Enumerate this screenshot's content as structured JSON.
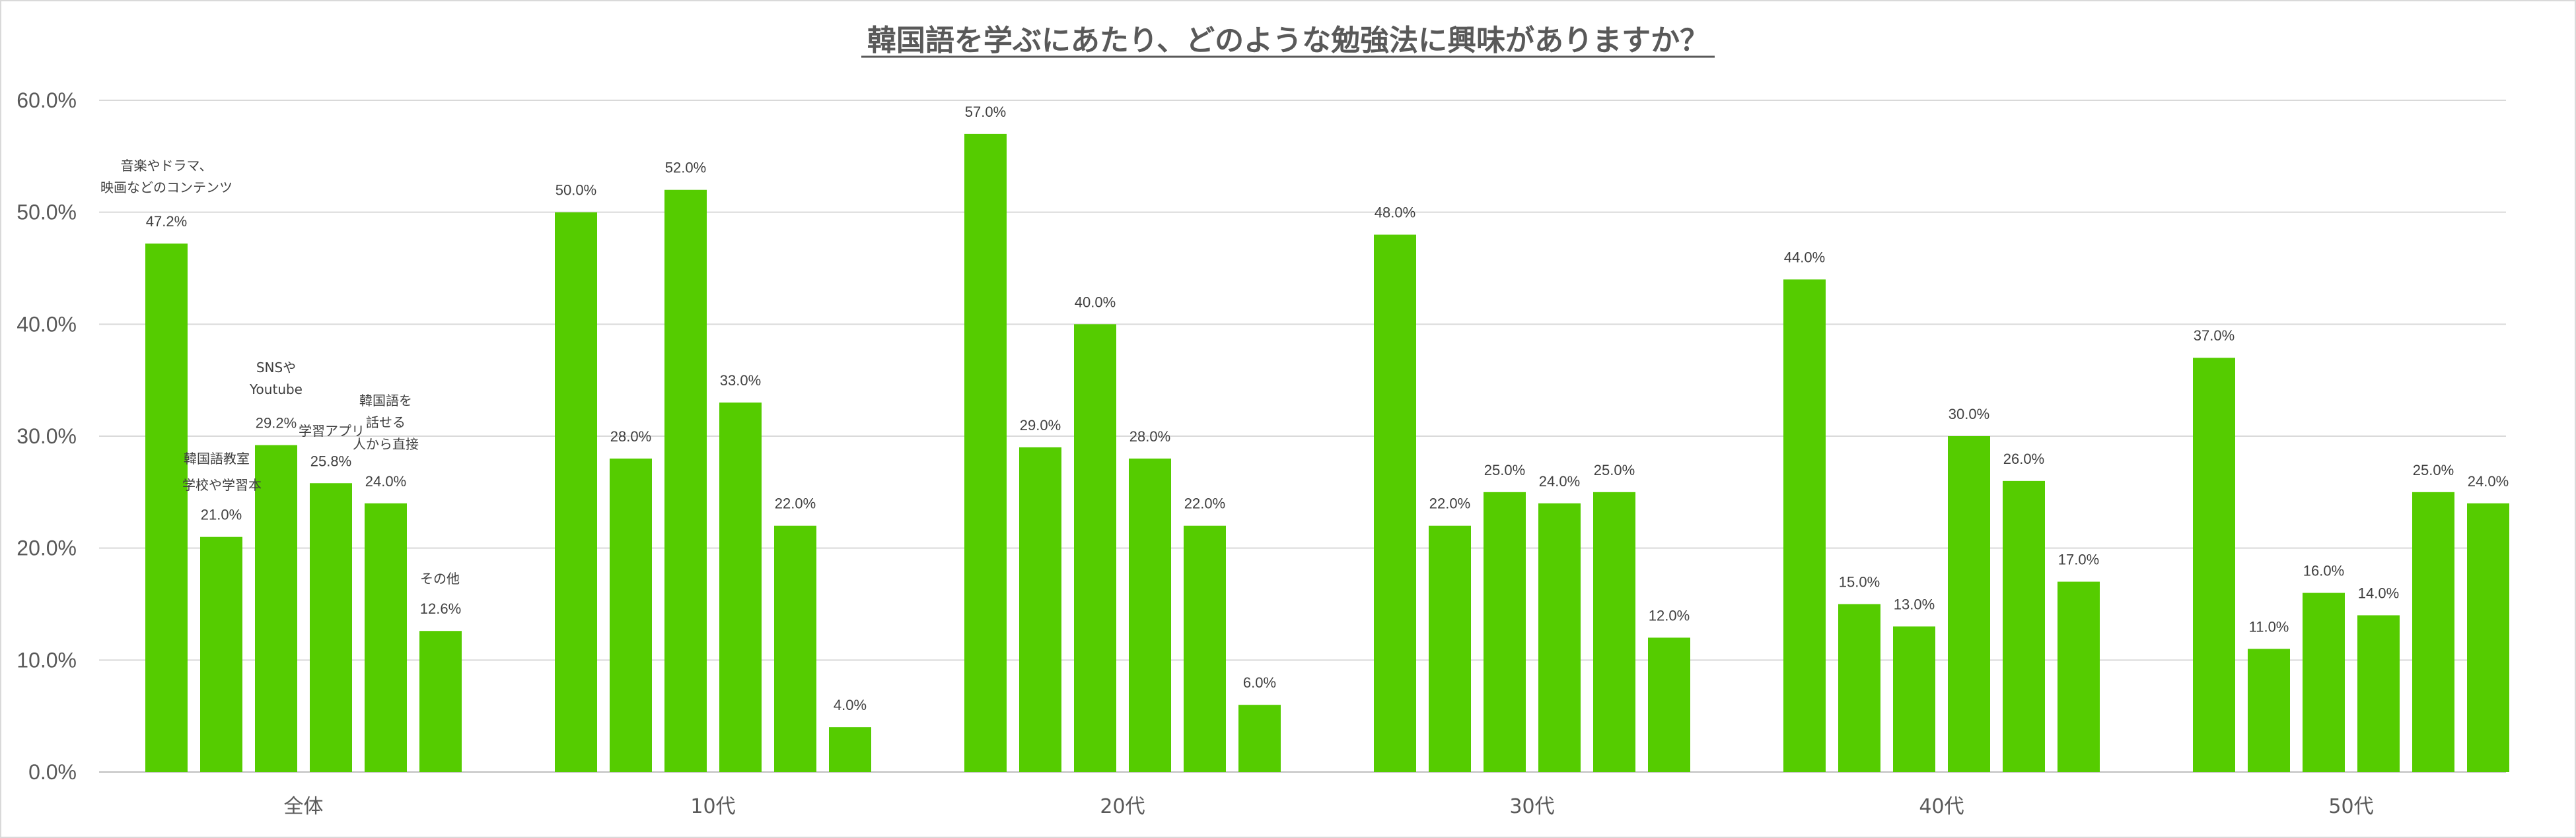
{
  "chart_data": {
    "type": "bar",
    "title": "韓国語を学ぶにあたり、どのような勉強法に興味がありますか？",
    "xlabel": "",
    "ylabel": "",
    "ylim": [
      0,
      60
    ],
    "y_ticks": [
      "0.0%",
      "10.0%",
      "20.0%",
      "30.0%",
      "40.0%",
      "50.0%",
      "60.0%"
    ],
    "grid": true,
    "bar_color": "#55cc00",
    "categories": [
      "全体",
      "10代",
      "20代",
      "30代",
      "40代",
      "50代"
    ],
    "series": [
      {
        "name": "音楽やドラマ、映画などのコンテンツ",
        "label_lines": [
          "音楽やドラマ、",
          "映画などのコンテンツ"
        ],
        "values": [
          47.2,
          50.0,
          57.0,
          48.0,
          44.0,
          37.0
        ],
        "labels": [
          "47.2%",
          "50.0%",
          "57.0%",
          "48.0%",
          "44.0%",
          "37.0%"
        ]
      },
      {
        "name": "韓国語教室",
        "label_lines": [
          "韓国語教室"
        ],
        "values": [
          21.0,
          28.0,
          29.0,
          22.0,
          15.0,
          11.0
        ],
        "labels": [
          "21.0%",
          "28.0%",
          "29.0%",
          "22.0%",
          "15.0%",
          "11.0%"
        ]
      },
      {
        "name": "SNSやYoutube",
        "label_lines": [
          "SNSや",
          "Youtube"
        ],
        "values": [
          29.2,
          52.0,
          40.0,
          25.0,
          13.0,
          16.0
        ],
        "labels": [
          "29.2%",
          "52.0%",
          "40.0%",
          "25.0%",
          "13.0%",
          "16.0%"
        ]
      },
      {
        "name": "学校や学習本",
        "label_lines": [
          "学校や学習本"
        ],
        "values": [
          25.8,
          33.0,
          28.0,
          24.0,
          30.0,
          14.0
        ],
        "labels": [
          "25.8%",
          "33.0%",
          "28.0%",
          "24.0%",
          "30.0%",
          "14.0%"
        ]
      },
      {
        "name": "学習アプリ",
        "label_lines": [
          "学習アプリ"
        ],
        "values": [
          24.0,
          22.0,
          22.0,
          25.0,
          26.0,
          25.0
        ],
        "labels": [
          "24.0%",
          "22.0%",
          "22.0%",
          "25.0%",
          "26.0%",
          "25.0%"
        ]
      },
      {
        "name": "韓国語を話せる人から直接",
        "label_lines": [
          "韓国語を",
          "話せる",
          "人から直接"
        ],
        "values": [
          null,
          null,
          null,
          null,
          null,
          null
        ],
        "labels": []
      },
      {
        "name": "その他",
        "label_lines": [
          "その他"
        ],
        "values": [
          12.6,
          4.0,
          6.0,
          12.0,
          17.0,
          24.0
        ],
        "labels": [
          "12.6%",
          "4.0%",
          "6.0%",
          "12.0%",
          "17.0%",
          "24.0%"
        ]
      }
    ]
  }
}
